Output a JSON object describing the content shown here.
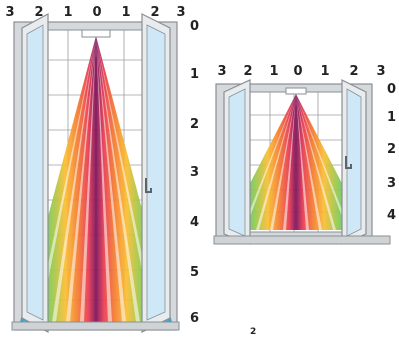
{
  "diagrams": [
    {
      "name": "tall-window",
      "top_scale": [
        "3",
        "2",
        "1",
        "0",
        "1",
        "2",
        "3"
      ],
      "side_scale": [
        "0",
        "1",
        "2",
        "3",
        "4",
        "5",
        "6"
      ]
    },
    {
      "name": "short-window",
      "top_scale": [
        "3",
        "2",
        "1",
        "0",
        "1",
        "2",
        "3"
      ],
      "side_scale": [
        "0",
        "1",
        "2",
        "3",
        "4"
      ]
    }
  ],
  "corner_mark": "2",
  "colors": {
    "frame": "#d6d9dc",
    "frame_edge": "#8a8f93",
    "glass": "#cfe8f7",
    "muntin": "#8a8f93",
    "spectrum": [
      "#7a0f5a",
      "#c01e5d",
      "#e8384f",
      "#f47a2e",
      "#fbbd30",
      "#d9d640",
      "#8cc94e",
      "#3fb7b0",
      "#2c9dd6"
    ]
  }
}
